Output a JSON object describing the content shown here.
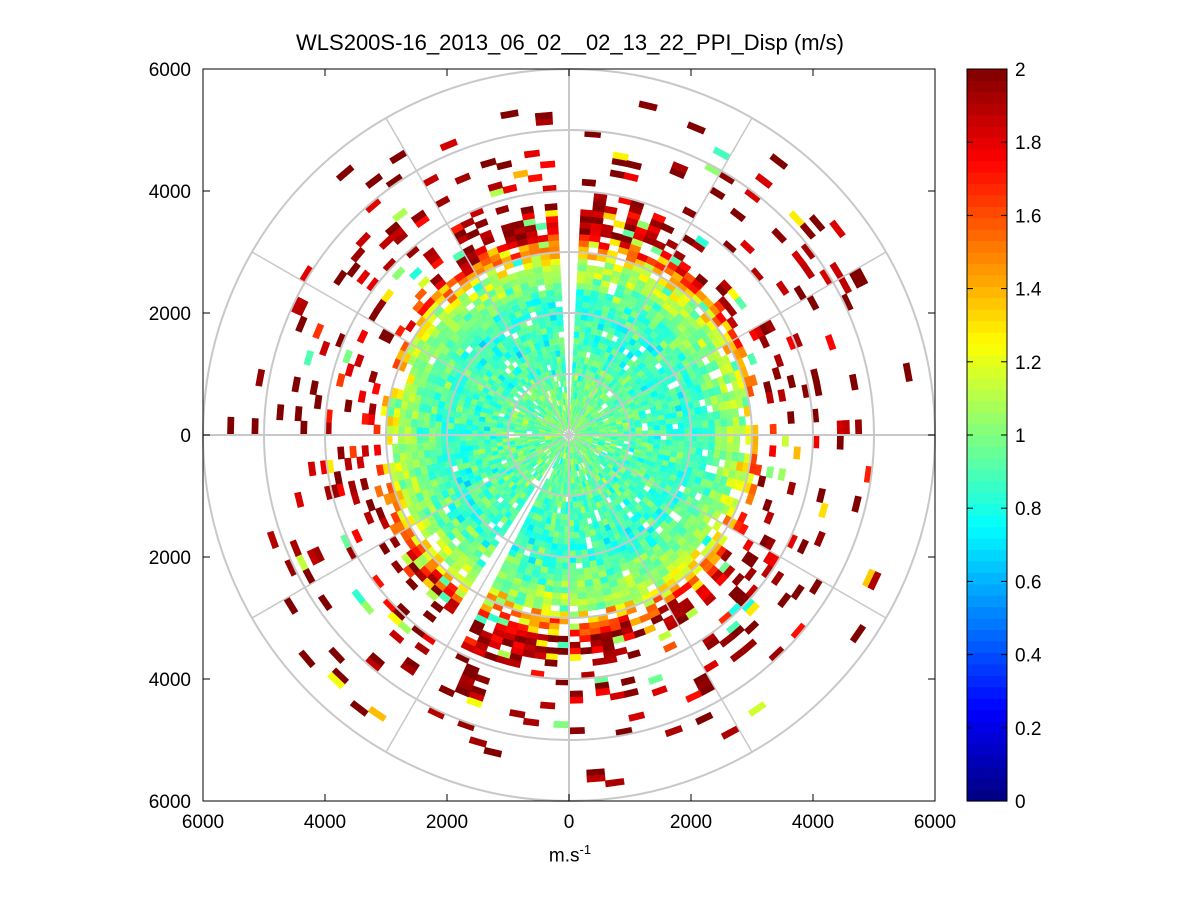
{
  "chart_data": {
    "type": "heatmap",
    "subtype": "polar-ppi-scan",
    "title": "WLS200S-16_2013_06_02__02_13_22_PPI_Disp (m/s)",
    "xlabel_base": "m.s",
    "xlabel_exp": "-1",
    "xlim": [
      -6000,
      6000
    ],
    "ylim": [
      -6000,
      6000
    ],
    "x_tick_labels": [
      "6000",
      "4000",
      "2000",
      "0",
      "2000",
      "4000",
      "6000"
    ],
    "y_tick_labels": [
      "6000",
      "4000",
      "2000",
      "0",
      "2000",
      "4000",
      "6000"
    ],
    "tick_values": [
      -6000,
      -4000,
      -2000,
      0,
      2000,
      4000,
      6000
    ],
    "range_rings_m": [
      1000,
      2000,
      3000,
      4000,
      5000,
      6000
    ],
    "spoke_angle_step_deg": 30,
    "colorbar": {
      "colormap": "jet",
      "clim": [
        0,
        2
      ],
      "tick_values": [
        0,
        0.2,
        0.4,
        0.6,
        0.8,
        1,
        1.2,
        1.4,
        1.6,
        1.8,
        2
      ],
      "tick_labels": [
        "0",
        "0.2",
        "0.4",
        "0.6",
        "0.8",
        "1",
        "1.2",
        "1.4",
        "1.6",
        "1.8",
        "2"
      ]
    },
    "scan": {
      "gate_spacing_m": 100,
      "beam_width_deg": 3,
      "dense_max_range_m": 2800,
      "data_edge_m": 3300,
      "sparse_max_range_m": 5800,
      "blocked_sectors_deg": [
        [
          205,
          212
        ],
        [
          356,
          360
        ],
        [
          0,
          1
        ]
      ],
      "value_by_range": [
        {
          "range_m": 0,
          "mean": 1.0
        },
        {
          "range_m": 2000,
          "mean": 0.85
        },
        {
          "range_m": 2800,
          "mean": 1.1
        },
        {
          "range_m": 3300,
          "mean": 1.9
        },
        {
          "range_m": 5800,
          "mean": 2.0
        }
      ]
    }
  }
}
